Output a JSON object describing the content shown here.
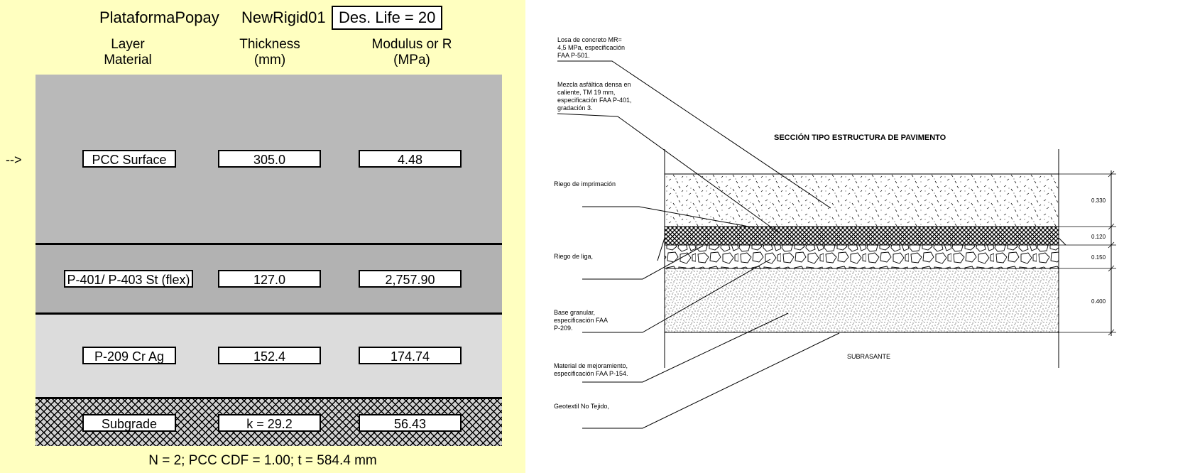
{
  "header": {
    "project": "PlataformaPopay",
    "section": "NewRigid01",
    "design_life": "Des. Life = 20"
  },
  "columns": {
    "material": "Layer\nMaterial",
    "thickness": "Thickness\n(mm)",
    "modulus": "Modulus or R\n(MPa)"
  },
  "selection_arrow": "-->",
  "layers": [
    {
      "material": "PCC Surface",
      "thickness": "305.0",
      "modulus": "4.48"
    },
    {
      "material": "P-401/ P-403 St (flex)",
      "thickness": "127.0",
      "modulus": "2,757.90"
    },
    {
      "material": "P-209 Cr Ag",
      "thickness": "152.4",
      "modulus": "174.74"
    },
    {
      "material": "Subgrade",
      "thickness": "k = 29.2",
      "modulus": "56.43"
    }
  ],
  "footer": "N = 2;  PCC CDF = 1.00;  t = 584.4 mm",
  "drawing": {
    "title": "SECCIÓN TIPO ESTRUCTURA DE PAVIMENTO",
    "subgrade_label": "SUBRASANTE",
    "callouts": [
      {
        "lines": [
          "Losa de concreto MR=",
          "4,5 MPa, especificación",
          "FAA P-501."
        ]
      },
      {
        "lines": [
          "Mezcla asfáltica densa en",
          "caliente, TM 19 mm,",
          "especificación FAA P-401,",
          "gradación 3."
        ]
      },
      {
        "lines": [
          "Riego de imprimación"
        ]
      },
      {
        "lines": [
          "Riego de liga,"
        ]
      },
      {
        "lines": [
          "Base granular,",
          "especificación FAA",
          "P-209."
        ]
      },
      {
        "lines": [
          "Material de mejoramiento,",
          "especificación FAA P-154."
        ]
      },
      {
        "lines": [
          "Geotextil No Tejido,"
        ]
      }
    ],
    "dimensions": [
      "0.330",
      "0.120",
      "0.150",
      "0.400"
    ]
  }
}
